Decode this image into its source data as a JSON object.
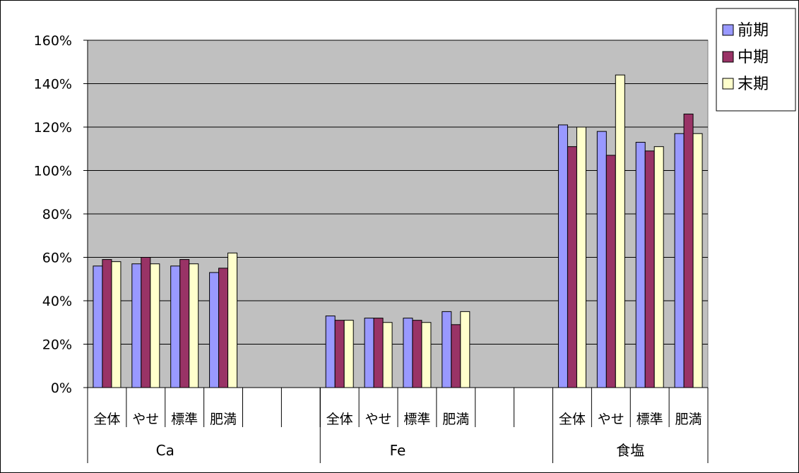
{
  "chart_data": {
    "type": "bar",
    "y_ticks": [
      "0%",
      "20%",
      "40%",
      "60%",
      "80%",
      "100%",
      "120%",
      "140%",
      "160%"
    ],
    "ylim": [
      0,
      160
    ],
    "grid": true,
    "legend_position": "top-right",
    "colors": {
      "plot_bg": "#c0c0c0",
      "前期": "#9999ff",
      "中期": "#993366",
      "末期": "#ffffcc"
    },
    "groups": [
      {
        "name": "Ca",
        "categories": [
          "全体",
          "やせ",
          "標準",
          "肥満"
        ],
        "series": [
          {
            "name": "前期",
            "values": [
              56,
              57,
              56,
              53
            ]
          },
          {
            "name": "中期",
            "values": [
              59,
              60,
              59,
              55
            ]
          },
          {
            "name": "末期",
            "values": [
              58,
              57,
              57,
              62
            ]
          }
        ]
      },
      {
        "name": "Fe",
        "categories": [
          "全体",
          "やせ",
          "標準",
          "肥満"
        ],
        "series": [
          {
            "name": "前期",
            "values": [
              33,
              32,
              32,
              35
            ]
          },
          {
            "name": "中期",
            "values": [
              31,
              32,
              31,
              29
            ]
          },
          {
            "name": "末期",
            "values": [
              31,
              30,
              30,
              35
            ]
          }
        ]
      },
      {
        "name": "食塩",
        "categories": [
          "全体",
          "やせ",
          "標準",
          "肥満"
        ],
        "series": [
          {
            "name": "前期",
            "values": [
              121,
              118,
              113,
              117
            ]
          },
          {
            "name": "中期",
            "values": [
              111,
              107,
              109,
              126
            ]
          },
          {
            "name": "末期",
            "values": [
              120,
              144,
              111,
              117
            ]
          }
        ]
      }
    ]
  }
}
